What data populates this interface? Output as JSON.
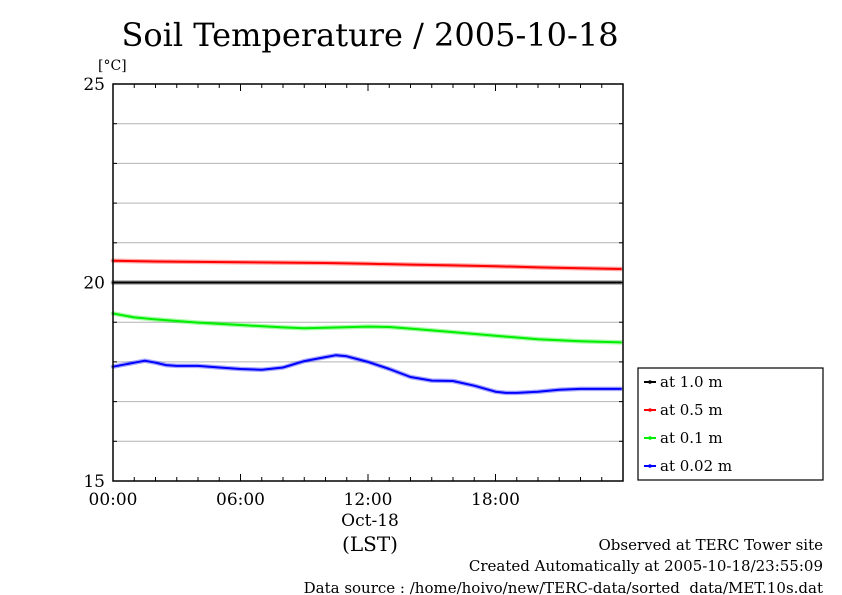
{
  "chart_data": {
    "type": "line",
    "title": "Soil Temperature / 2005-10-18",
    "ylabel": "[°C]",
    "xlabel": "(LST)",
    "x_date_label": "Oct-18",
    "xlim": [
      0,
      24
    ],
    "ylim": [
      15,
      25
    ],
    "yticks": [
      15,
      20,
      25
    ],
    "y_minor_step": 1,
    "xticks": [
      {
        "value": 0,
        "label": "00:00"
      },
      {
        "value": 6,
        "label": "06:00"
      },
      {
        "value": 12,
        "label": "12:00"
      },
      {
        "value": 18,
        "label": "18:00"
      }
    ],
    "x_minor_step": 1,
    "grid": "horizontal",
    "legend_position": "right",
    "series": [
      {
        "name": "at 1.0 m",
        "color": "#000000",
        "x": [
          0,
          2,
          4,
          6,
          8,
          10,
          11,
          12,
          14,
          16,
          18,
          20,
          22,
          23.9
        ],
        "y": [
          20.0,
          20.0,
          20.0,
          20.0,
          20.0,
          20.0,
          20.0,
          20.0,
          20.0,
          20.0,
          20.0,
          20.0,
          20.0,
          20.0
        ]
      },
      {
        "name": "at 0.5 m",
        "color": "#ff0000",
        "x": [
          0,
          2,
          4,
          6,
          8,
          10,
          12,
          14,
          16,
          18,
          20,
          22,
          23.9
        ],
        "y": [
          20.55,
          20.53,
          20.52,
          20.51,
          20.5,
          20.49,
          20.47,
          20.45,
          20.43,
          20.41,
          20.38,
          20.36,
          20.34
        ]
      },
      {
        "name": "at 0.1 m",
        "color": "#00ee00",
        "x": [
          0,
          1,
          2,
          4,
          6,
          8,
          9,
          10,
          12,
          13,
          14,
          16,
          18,
          20,
          22,
          23.9
        ],
        "y": [
          19.22,
          19.12,
          19.07,
          18.99,
          18.93,
          18.87,
          18.85,
          18.86,
          18.89,
          18.88,
          18.84,
          18.75,
          18.66,
          18.57,
          18.52,
          18.49
        ]
      },
      {
        "name": "at 0.02 m",
        "color": "#0000ff",
        "x": [
          0,
          0.5,
          1,
          1.5,
          2,
          2.5,
          3,
          4,
          5,
          5.5,
          6,
          7,
          8,
          9,
          10,
          10.5,
          11,
          11.5,
          12,
          13,
          14,
          15,
          16,
          17,
          18,
          18.5,
          19,
          20,
          21,
          22,
          23,
          23.9
        ],
        "y": [
          17.88,
          17.93,
          17.98,
          18.03,
          17.98,
          17.92,
          17.9,
          17.9,
          17.86,
          17.84,
          17.82,
          17.8,
          17.86,
          18.02,
          18.12,
          18.17,
          18.14,
          18.07,
          18.0,
          17.82,
          17.62,
          17.53,
          17.52,
          17.4,
          17.25,
          17.22,
          17.22,
          17.25,
          17.3,
          17.32,
          17.32,
          17.32
        ]
      }
    ]
  },
  "footer": {
    "line1": "Observed at TERC Tower site",
    "line2": "Created Automatically at 2005-10-18/23:55:09",
    "line3": "Data source : /home/hoivo/new/TERC-data/sorted  data/MET.10s.dat"
  }
}
